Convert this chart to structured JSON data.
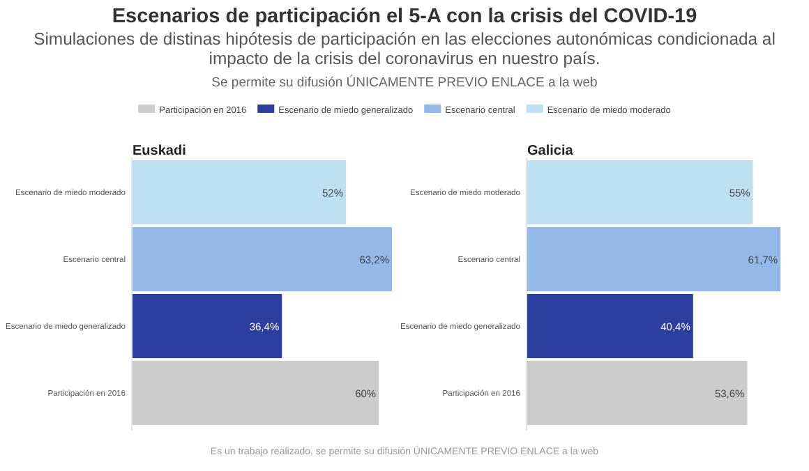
{
  "chart_data": [
    {
      "type": "bar",
      "orientation": "horizontal",
      "title": "Euskadi",
      "categories": [
        "Escenario de miedo moderado",
        "Escenario central",
        "Escenario de miedo generalizado",
        "Participación en 2016"
      ],
      "series": [
        {
          "name": "Escenario de miedo moderado",
          "color": "#bde0f2",
          "values": [
            52,
            null,
            null,
            null
          ],
          "value_labels": [
            "52%",
            null,
            null,
            null
          ]
        },
        {
          "name": "Escenario central",
          "color": "#94b8e8",
          "values": [
            null,
            63.2,
            null,
            null
          ],
          "value_labels": [
            null,
            "63,2%",
            null,
            null
          ]
        },
        {
          "name": "Escenario de miedo generalizado",
          "color": "#2c3e9e",
          "values": [
            null,
            null,
            36.4,
            null
          ],
          "value_labels": [
            null,
            null,
            "36,4%",
            null
          ]
        },
        {
          "name": "Participación en 2016",
          "color": "#cccccc",
          "values": [
            null,
            null,
            null,
            60
          ],
          "value_labels": [
            null,
            null,
            null,
            "60%"
          ]
        }
      ],
      "legend": "top",
      "annotations": [
        "Escenarios de participación el 5-A con la crisis del COVID-19",
        "Simulaciones de distinas hipótesis de participación en las elecciones autonómicas condicionada al impacto de la crisis del coronavirus en nuestro país.",
        "Se permite su difusión ÚNICAMENTE PREVIO ENLACE a la web",
        "Es un trabajo realizado, se permite su difusión ÚNICAMENTE PREVIO ENLACE a la web"
      ]
    },
    {
      "type": "bar",
      "orientation": "horizontal",
      "title": "Galicia",
      "categories": [
        "Escenario de miedo moderado",
        "Escenario central",
        "Escenario de miedo generalizado",
        "Participación en 2016"
      ],
      "series": [
        {
          "name": "Escenario de miedo moderado",
          "color": "#bde0f2",
          "values": [
            55,
            null,
            null,
            null
          ],
          "value_labels": [
            "55%",
            null,
            null,
            null
          ]
        },
        {
          "name": "Escenario central",
          "color": "#94b8e8",
          "values": [
            null,
            61.7,
            null,
            null
          ],
          "value_labels": [
            null,
            "61,7%",
            null,
            null
          ]
        },
        {
          "name": "Escenario de miedo generalizado",
          "color": "#2c3e9e",
          "values": [
            null,
            null,
            40.4,
            null
          ],
          "value_labels": [
            null,
            null,
            "40,4%",
            null
          ]
        },
        {
          "name": "Participación en 2016",
          "color": "#cccccc",
          "values": [
            null,
            null,
            null,
            53.6
          ],
          "value_labels": [
            null,
            null,
            null,
            "53,6%"
          ]
        }
      ]
    }
  ]
}
